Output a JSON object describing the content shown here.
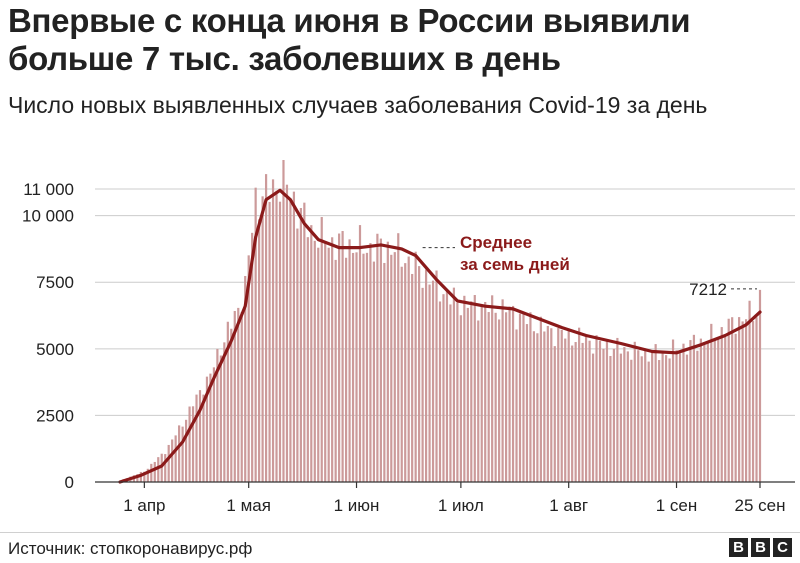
{
  "header": {
    "title": "Впервые с конца июня в России выявили больше 7 тыс. заболевших в день",
    "subtitle": "Число новых выявленных случаев заболевания Covid-19 за день"
  },
  "footer": {
    "source": "Источник: стопкоронавирус.рф",
    "logo_letters": [
      "B",
      "B",
      "C"
    ]
  },
  "chart_data": {
    "type": "bar",
    "title": "Впервые с конца июня в России выявили больше 7 тыс. заболевших в день",
    "subtitle": "Число новых выявленных случаев заболевания Covid-19 за день",
    "xlabel": "",
    "ylabel": "",
    "x_start": "2020-03-25",
    "x_end": "2020-09-25",
    "ylim": [
      0,
      11000
    ],
    "yticks": [
      0,
      2500,
      5000,
      7500,
      10000,
      11000
    ],
    "ytick_labels": [
      "0",
      "2500",
      "5000",
      "7500",
      "10 000",
      "11 000"
    ],
    "xticks": [
      {
        "date": "2020-04-01",
        "label": "1 апр"
      },
      {
        "date": "2020-05-01",
        "label": "1 мая"
      },
      {
        "date": "2020-06-01",
        "label": "1 июн"
      },
      {
        "date": "2020-07-01",
        "label": "1 июл"
      },
      {
        "date": "2020-08-01",
        "label": "1 авг"
      },
      {
        "date": "2020-09-01",
        "label": "1 сен"
      },
      {
        "date": "2020-09-25",
        "label": "25 сен"
      }
    ],
    "grid": "horizontal",
    "bar_color": "#cc9a9a",
    "line_color": "#8b1a1a",
    "series": [
      {
        "name": "Число новых случаев за день",
        "type": "bar",
        "anchors": [
          [
            "2020-03-25",
            50
          ],
          [
            "2020-04-01",
            400
          ],
          [
            "2020-04-07",
            1150
          ],
          [
            "2020-04-12",
            2200
          ],
          [
            "2020-04-17",
            3400
          ],
          [
            "2020-04-20",
            4000
          ],
          [
            "2020-04-23",
            5100
          ],
          [
            "2020-04-27",
            6200
          ],
          [
            "2020-04-30",
            7300
          ],
          [
            "2020-05-03",
            10600
          ],
          [
            "2020-05-07",
            10900
          ],
          [
            "2020-05-11",
            11400
          ],
          [
            "2020-05-15",
            10300
          ],
          [
            "2020-05-19",
            9400
          ],
          [
            "2020-05-24",
            9000
          ],
          [
            "2020-05-30",
            8900
          ],
          [
            "2020-06-05",
            8800
          ],
          [
            "2020-06-11",
            8800
          ],
          [
            "2020-06-17",
            8200
          ],
          [
            "2020-06-23",
            7500
          ],
          [
            "2020-06-29",
            6800
          ],
          [
            "2020-07-06",
            6600
          ],
          [
            "2020-07-14",
            6500
          ],
          [
            "2020-07-21",
            6000
          ],
          [
            "2020-07-28",
            5600
          ],
          [
            "2020-08-04",
            5400
          ],
          [
            "2020-08-12",
            5100
          ],
          [
            "2020-08-20",
            4900
          ],
          [
            "2020-08-28",
            4800
          ],
          [
            "2020-09-04",
            5100
          ],
          [
            "2020-09-12",
            5500
          ],
          [
            "2020-09-18",
            6000
          ],
          [
            "2020-09-24",
            6400
          ],
          [
            "2020-09-25",
            7212
          ]
        ]
      },
      {
        "name": "Среднее за семь дней",
        "type": "line",
        "points": [
          [
            "2020-03-25",
            0
          ],
          [
            "2020-03-31",
            250
          ],
          [
            "2020-04-06",
            600
          ],
          [
            "2020-04-12",
            1500
          ],
          [
            "2020-04-17",
            2700
          ],
          [
            "2020-04-21",
            3900
          ],
          [
            "2020-04-26",
            5300
          ],
          [
            "2020-04-30",
            6600
          ],
          [
            "2020-05-03",
            9200
          ],
          [
            "2020-05-06",
            10600
          ],
          [
            "2020-05-10",
            10950
          ],
          [
            "2020-05-13",
            10600
          ],
          [
            "2020-05-17",
            9700
          ],
          [
            "2020-05-21",
            9100
          ],
          [
            "2020-05-27",
            8800
          ],
          [
            "2020-06-02",
            8800
          ],
          [
            "2020-06-08",
            8900
          ],
          [
            "2020-06-14",
            8750
          ],
          [
            "2020-06-18",
            8500
          ],
          [
            "2020-06-24",
            7600
          ],
          [
            "2020-06-30",
            6800
          ],
          [
            "2020-07-08",
            6600
          ],
          [
            "2020-07-16",
            6500
          ],
          [
            "2020-07-22",
            6200
          ],
          [
            "2020-07-30",
            5800
          ],
          [
            "2020-08-06",
            5500
          ],
          [
            "2020-08-16",
            5200
          ],
          [
            "2020-08-25",
            4900
          ],
          [
            "2020-09-01",
            4850
          ],
          [
            "2020-09-08",
            5150
          ],
          [
            "2020-09-15",
            5500
          ],
          [
            "2020-09-21",
            5900
          ],
          [
            "2020-09-25",
            6380
          ]
        ]
      }
    ],
    "annotations": [
      {
        "text": "Среднее",
        "date": "2020-06-20",
        "value": 8800,
        "style": "line-label"
      },
      {
        "text": "за семь дней",
        "date": "2020-06-20",
        "value": 8800,
        "style": "line-label-2"
      },
      {
        "text": "7212",
        "date": "2020-09-25",
        "value": 7212,
        "style": "value-label"
      }
    ]
  }
}
